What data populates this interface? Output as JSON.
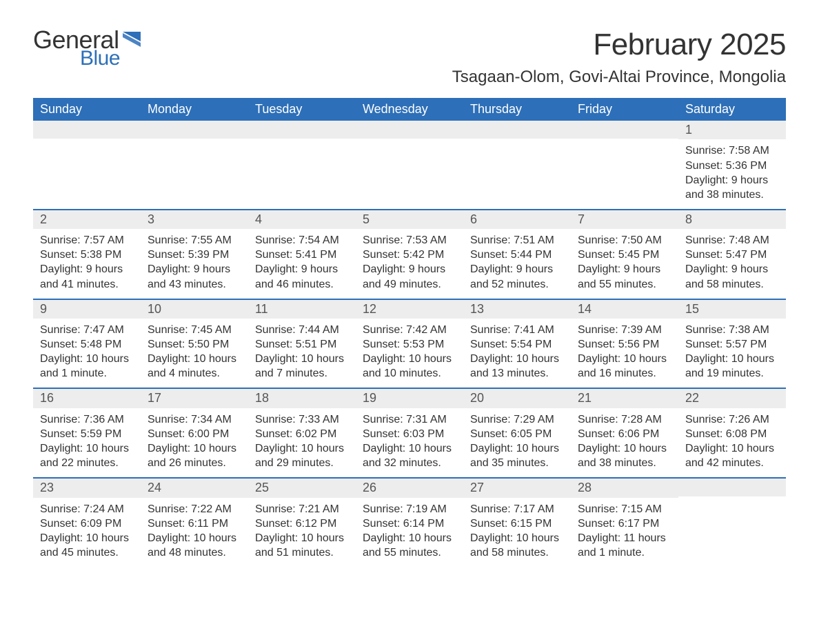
{
  "logo": {
    "line1": "General",
    "line2": "Blue",
    "line1_color": "#333333",
    "line2_color": "#2d6fb8"
  },
  "title": "February 2025",
  "location": "Tsagaan-Olom, Govi-Altai Province, Mongolia",
  "colors": {
    "header_bg": "#2d6fb8",
    "header_fg": "#ffffff",
    "daybar_bg": "#ededed",
    "row_border": "#2d6fb8",
    "text": "#333333"
  },
  "weekdays": [
    "Sunday",
    "Monday",
    "Tuesday",
    "Wednesday",
    "Thursday",
    "Friday",
    "Saturday"
  ],
  "weeks": [
    [
      {
        "n": "",
        "sunrise": "",
        "sunset": "",
        "daylight": ""
      },
      {
        "n": "",
        "sunrise": "",
        "sunset": "",
        "daylight": ""
      },
      {
        "n": "",
        "sunrise": "",
        "sunset": "",
        "daylight": ""
      },
      {
        "n": "",
        "sunrise": "",
        "sunset": "",
        "daylight": ""
      },
      {
        "n": "",
        "sunrise": "",
        "sunset": "",
        "daylight": ""
      },
      {
        "n": "",
        "sunrise": "",
        "sunset": "",
        "daylight": ""
      },
      {
        "n": "1",
        "sunrise": "Sunrise: 7:58 AM",
        "sunset": "Sunset: 5:36 PM",
        "daylight": "Daylight: 9 hours and 38 minutes."
      }
    ],
    [
      {
        "n": "2",
        "sunrise": "Sunrise: 7:57 AM",
        "sunset": "Sunset: 5:38 PM",
        "daylight": "Daylight: 9 hours and 41 minutes."
      },
      {
        "n": "3",
        "sunrise": "Sunrise: 7:55 AM",
        "sunset": "Sunset: 5:39 PM",
        "daylight": "Daylight: 9 hours and 43 minutes."
      },
      {
        "n": "4",
        "sunrise": "Sunrise: 7:54 AM",
        "sunset": "Sunset: 5:41 PM",
        "daylight": "Daylight: 9 hours and 46 minutes."
      },
      {
        "n": "5",
        "sunrise": "Sunrise: 7:53 AM",
        "sunset": "Sunset: 5:42 PM",
        "daylight": "Daylight: 9 hours and 49 minutes."
      },
      {
        "n": "6",
        "sunrise": "Sunrise: 7:51 AM",
        "sunset": "Sunset: 5:44 PM",
        "daylight": "Daylight: 9 hours and 52 minutes."
      },
      {
        "n": "7",
        "sunrise": "Sunrise: 7:50 AM",
        "sunset": "Sunset: 5:45 PM",
        "daylight": "Daylight: 9 hours and 55 minutes."
      },
      {
        "n": "8",
        "sunrise": "Sunrise: 7:48 AM",
        "sunset": "Sunset: 5:47 PM",
        "daylight": "Daylight: 9 hours and 58 minutes."
      }
    ],
    [
      {
        "n": "9",
        "sunrise": "Sunrise: 7:47 AM",
        "sunset": "Sunset: 5:48 PM",
        "daylight": "Daylight: 10 hours and 1 minute."
      },
      {
        "n": "10",
        "sunrise": "Sunrise: 7:45 AM",
        "sunset": "Sunset: 5:50 PM",
        "daylight": "Daylight: 10 hours and 4 minutes."
      },
      {
        "n": "11",
        "sunrise": "Sunrise: 7:44 AM",
        "sunset": "Sunset: 5:51 PM",
        "daylight": "Daylight: 10 hours and 7 minutes."
      },
      {
        "n": "12",
        "sunrise": "Sunrise: 7:42 AM",
        "sunset": "Sunset: 5:53 PM",
        "daylight": "Daylight: 10 hours and 10 minutes."
      },
      {
        "n": "13",
        "sunrise": "Sunrise: 7:41 AM",
        "sunset": "Sunset: 5:54 PM",
        "daylight": "Daylight: 10 hours and 13 minutes."
      },
      {
        "n": "14",
        "sunrise": "Sunrise: 7:39 AM",
        "sunset": "Sunset: 5:56 PM",
        "daylight": "Daylight: 10 hours and 16 minutes."
      },
      {
        "n": "15",
        "sunrise": "Sunrise: 7:38 AM",
        "sunset": "Sunset: 5:57 PM",
        "daylight": "Daylight: 10 hours and 19 minutes."
      }
    ],
    [
      {
        "n": "16",
        "sunrise": "Sunrise: 7:36 AM",
        "sunset": "Sunset: 5:59 PM",
        "daylight": "Daylight: 10 hours and 22 minutes."
      },
      {
        "n": "17",
        "sunrise": "Sunrise: 7:34 AM",
        "sunset": "Sunset: 6:00 PM",
        "daylight": "Daylight: 10 hours and 26 minutes."
      },
      {
        "n": "18",
        "sunrise": "Sunrise: 7:33 AM",
        "sunset": "Sunset: 6:02 PM",
        "daylight": "Daylight: 10 hours and 29 minutes."
      },
      {
        "n": "19",
        "sunrise": "Sunrise: 7:31 AM",
        "sunset": "Sunset: 6:03 PM",
        "daylight": "Daylight: 10 hours and 32 minutes."
      },
      {
        "n": "20",
        "sunrise": "Sunrise: 7:29 AM",
        "sunset": "Sunset: 6:05 PM",
        "daylight": "Daylight: 10 hours and 35 minutes."
      },
      {
        "n": "21",
        "sunrise": "Sunrise: 7:28 AM",
        "sunset": "Sunset: 6:06 PM",
        "daylight": "Daylight: 10 hours and 38 minutes."
      },
      {
        "n": "22",
        "sunrise": "Sunrise: 7:26 AM",
        "sunset": "Sunset: 6:08 PM",
        "daylight": "Daylight: 10 hours and 42 minutes."
      }
    ],
    [
      {
        "n": "23",
        "sunrise": "Sunrise: 7:24 AM",
        "sunset": "Sunset: 6:09 PM",
        "daylight": "Daylight: 10 hours and 45 minutes."
      },
      {
        "n": "24",
        "sunrise": "Sunrise: 7:22 AM",
        "sunset": "Sunset: 6:11 PM",
        "daylight": "Daylight: 10 hours and 48 minutes."
      },
      {
        "n": "25",
        "sunrise": "Sunrise: 7:21 AM",
        "sunset": "Sunset: 6:12 PM",
        "daylight": "Daylight: 10 hours and 51 minutes."
      },
      {
        "n": "26",
        "sunrise": "Sunrise: 7:19 AM",
        "sunset": "Sunset: 6:14 PM",
        "daylight": "Daylight: 10 hours and 55 minutes."
      },
      {
        "n": "27",
        "sunrise": "Sunrise: 7:17 AM",
        "sunset": "Sunset: 6:15 PM",
        "daylight": "Daylight: 10 hours and 58 minutes."
      },
      {
        "n": "28",
        "sunrise": "Sunrise: 7:15 AM",
        "sunset": "Sunset: 6:17 PM",
        "daylight": "Daylight: 11 hours and 1 minute."
      },
      {
        "n": "",
        "sunrise": "",
        "sunset": "",
        "daylight": ""
      }
    ]
  ]
}
